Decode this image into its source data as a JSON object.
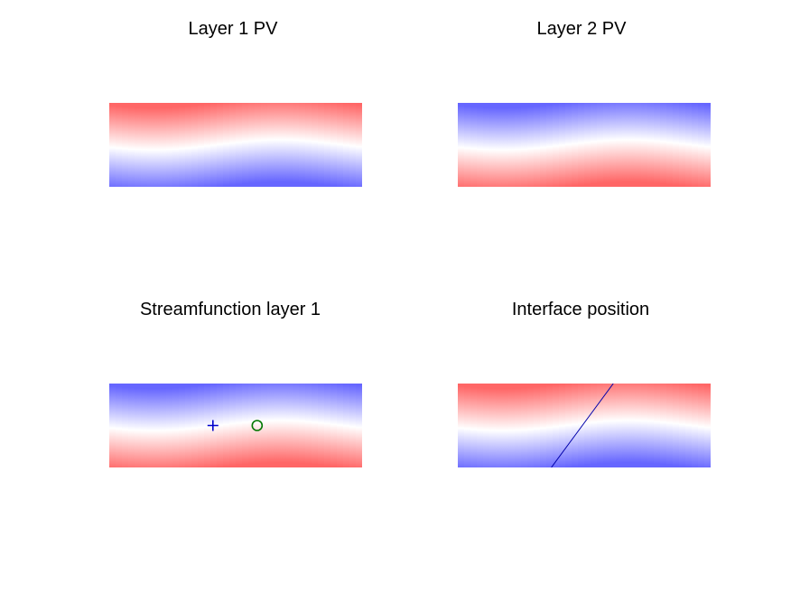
{
  "colors": {
    "positive": "#ff6666",
    "negative": "#6666ff",
    "neutral": "#ffffff",
    "marker_plus": "#0000cc",
    "marker_circle": "#007700",
    "interface_line": "#0000aa"
  },
  "chart_data": [
    {
      "type": "heatmap",
      "title": "Layer 1 PV",
      "xlabel": "",
      "ylabel": "",
      "axes_visible": false,
      "colormap": "red-white-blue",
      "top_color": "red",
      "bottom_color": "blue",
      "wave_amplitude": 0.06
    },
    {
      "type": "heatmap",
      "title": "Layer 2 PV",
      "xlabel": "",
      "ylabel": "",
      "axes_visible": false,
      "colormap": "blue-white-red",
      "top_color": "blue",
      "bottom_color": "red",
      "wave_amplitude": 0.06
    },
    {
      "type": "heatmap",
      "title": "Streamfunction layer 1",
      "xlabel": "",
      "ylabel": "",
      "axes_visible": false,
      "colormap": "blue-white-red",
      "top_color": "blue",
      "bottom_color": "red",
      "wave_amplitude": 0.06,
      "markers": [
        {
          "symbol": "plus",
          "x": 0.41,
          "y": 0.5
        },
        {
          "symbol": "circle",
          "x": 0.585,
          "y": 0.5
        }
      ]
    },
    {
      "type": "heatmap",
      "title": "Interface position",
      "xlabel": "",
      "ylabel": "",
      "axes_visible": false,
      "colormap": "red-white-blue",
      "top_color": "red",
      "bottom_color": "blue",
      "wave_amplitude": 0.06,
      "line": {
        "x": [
          0.37,
          0.615
        ],
        "y": [
          0,
          1
        ]
      }
    }
  ]
}
